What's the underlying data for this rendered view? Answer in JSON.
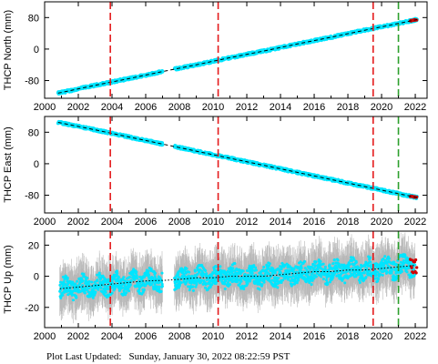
{
  "chart_data": [
    {
      "type": "scatter",
      "ylabel": "THCP North (mm)",
      "xlim": [
        2000,
        2022.7
      ],
      "ylim": [
        -125,
        120
      ],
      "xticks": [
        2000,
        2002,
        2004,
        2006,
        2008,
        2010,
        2012,
        2014,
        2016,
        2018,
        2020,
        2022
      ],
      "yticks": [
        -80,
        0,
        80
      ],
      "grid": false,
      "series": [
        {
          "values_x": [
            2000.8,
            2003.0,
            2005.0,
            2007.0,
            2009.0,
            2011.0,
            2013.0,
            2015.0,
            2017.0,
            2019.0,
            2021.0,
            2022.1
          ],
          "values_y": [
            -112,
            -92,
            -75,
            -57,
            -40,
            -22,
            -5,
            13,
            30,
            48,
            65,
            75
          ]
        },
        {
          "values_x": [
            2000.8,
            2022.1
          ],
          "values_y": [
            -112,
            75
          ]
        }
      ],
      "event_lines": [
        {
          "x": 2003.9,
          "color": "#e41a1c",
          "style": "dashed"
        },
        {
          "x": 2010.3,
          "color": "#e41a1c",
          "style": "dashed"
        },
        {
          "x": 2019.5,
          "color": "#e41a1c",
          "style": "dashed"
        },
        {
          "x": 2021.0,
          "color": "#2ca02c",
          "style": "dashed"
        }
      ]
    },
    {
      "type": "scatter",
      "ylabel": "THCP East (mm)",
      "xlim": [
        2000,
        2022.7
      ],
      "ylim": [
        -125,
        120
      ],
      "xticks": [
        2000,
        2002,
        2004,
        2006,
        2008,
        2010,
        2012,
        2014,
        2016,
        2018,
        2020,
        2022
      ],
      "yticks": [
        -80,
        0,
        80
      ],
      "grid": false,
      "series": [
        {
          "values_x": [
            2000.8,
            2003.0,
            2005.0,
            2007.0,
            2009.0,
            2011.0,
            2013.0,
            2015.0,
            2017.0,
            2019.0,
            2021.0,
            2022.1
          ],
          "values_y": [
            105,
            86,
            68,
            50,
            32,
            14,
            -4,
            -22,
            -40,
            -58,
            -76,
            -86
          ]
        },
        {
          "values_x": [
            2000.8,
            2022.1
          ],
          "values_y": [
            105,
            -86
          ]
        }
      ],
      "event_lines": [
        {
          "x": 2003.9,
          "color": "#e41a1c",
          "style": "dashed"
        },
        {
          "x": 2010.3,
          "color": "#e41a1c",
          "style": "dashed"
        },
        {
          "x": 2019.5,
          "color": "#e41a1c",
          "style": "dashed"
        },
        {
          "x": 2021.0,
          "color": "#2ca02c",
          "style": "dashed"
        }
      ]
    },
    {
      "type": "scatter",
      "ylabel": "THCP Up (mm)",
      "xlim": [
        2000,
        2022.7
      ],
      "ylim": [
        -33,
        29
      ],
      "xticks": [
        2000,
        2002,
        2004,
        2006,
        2008,
        2010,
        2012,
        2014,
        2016,
        2018,
        2020,
        2022
      ],
      "yticks": [
        -20,
        0,
        20
      ],
      "grid": false,
      "series": [
        {
          "values_x": [
            2000.9,
            2002.0,
            2003.0,
            2004.0,
            2005.0,
            2006.0,
            2007.3,
            2008.0,
            2009.0,
            2010.0,
            2011.0,
            2012.0,
            2013.0,
            2014.0,
            2015.0,
            2016.0,
            2017.0,
            2018.0,
            2019.0,
            2020.0,
            2021.0,
            2022.0
          ],
          "values_y": [
            -8,
            -7,
            -6,
            -5,
            -4,
            -3,
            -2.5,
            -2,
            -1,
            -1,
            0,
            0,
            0,
            1,
            2,
            3,
            3,
            4,
            4,
            5,
            6,
            7
          ]
        },
        {
          "values_x": [
            2000.9,
            2022.0
          ],
          "values_y": [
            -8,
            6
          ]
        }
      ],
      "event_lines": [
        {
          "x": 2003.9,
          "color": "#e41a1c",
          "style": "dashed"
        },
        {
          "x": 2010.3,
          "color": "#e41a1c",
          "style": "dashed"
        },
        {
          "x": 2019.5,
          "color": "#e41a1c",
          "style": "dashed"
        },
        {
          "x": 2021.0,
          "color": "#2ca02c",
          "style": "dashed"
        }
      ]
    }
  ],
  "footer": {
    "label": "Plot Last Updated:",
    "timestamp": "Sunday, January 30, 2022 08:22:59 PST"
  }
}
